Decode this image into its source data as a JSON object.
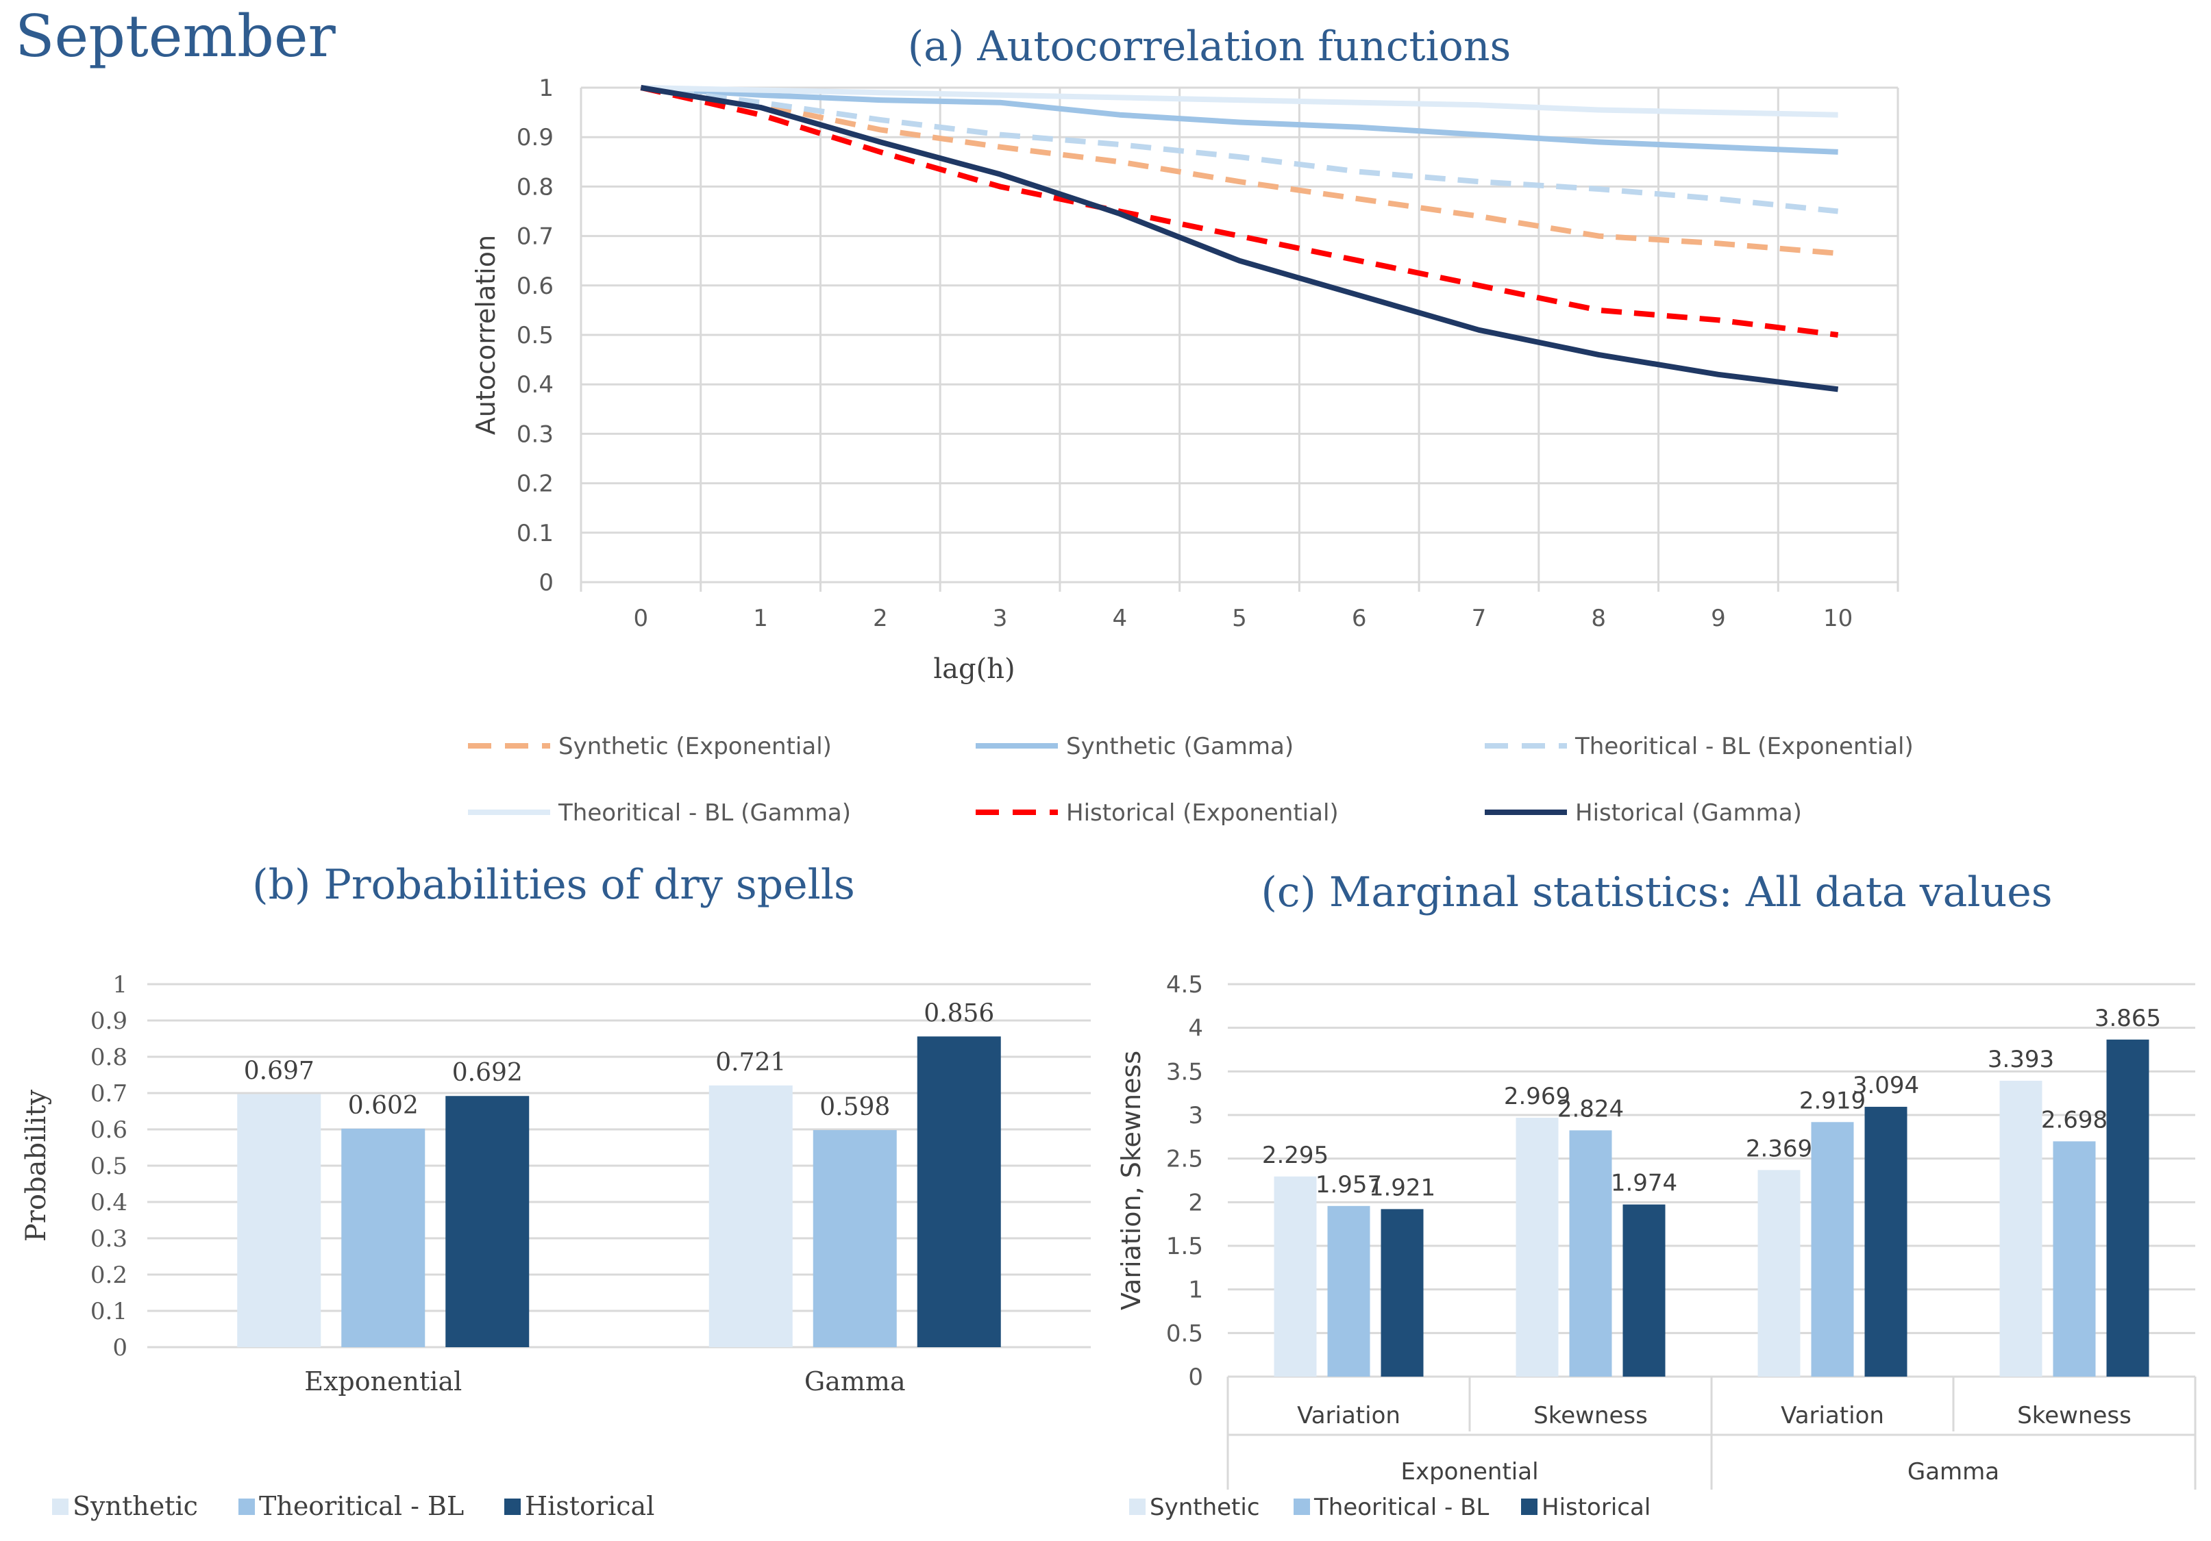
{
  "page_title": "September",
  "colors": {
    "title": "#2f5c8f",
    "grid": "#d9d9d9",
    "axis_text": "#595959",
    "label_text": "#404040",
    "synthetic": "#dce9f5",
    "theoretical": "#9dc3e6",
    "historical": "#1f4e79",
    "synth_exp_line": "#f4b183",
    "synth_gamma_line": "#9dc3e6",
    "theo_exp_line": "#bdd7ee",
    "theo_gamma_line": "#deebf7",
    "hist_exp_line": "#ff0000",
    "hist_gamma_line": "#1f3864"
  },
  "chart_data": [
    {
      "type": "line",
      "title": "(a) Autocorrelation functions",
      "xlabel": "lag(h)",
      "ylabel": "Autocorrelation",
      "x": [
        0,
        1,
        2,
        3,
        4,
        5,
        6,
        7,
        8,
        9,
        10
      ],
      "xlim": [
        0,
        10
      ],
      "ylim": [
        0,
        1
      ],
      "yticks": [
        "0",
        "0.1",
        "0.2",
        "0.3",
        "0.4",
        "0.5",
        "0.6",
        "0.7",
        "0.8",
        "0.9",
        "1"
      ],
      "grid": true,
      "legend_position": "bottom",
      "series": [
        {
          "name": "Synthetic (Exponential)",
          "style": "dashed",
          "color_key": "synth_exp_line",
          "values": [
            1.0,
            0.965,
            0.915,
            0.88,
            0.85,
            0.81,
            0.775,
            0.74,
            0.7,
            0.685,
            0.665
          ]
        },
        {
          "name": "Synthetic (Gamma)",
          "style": "solid",
          "color_key": "synth_gamma_line",
          "values": [
            1.0,
            0.985,
            0.975,
            0.97,
            0.945,
            0.93,
            0.92,
            0.905,
            0.89,
            0.88,
            0.87
          ]
        },
        {
          "name": "Theoritical - BL (Exponential)",
          "style": "dashed",
          "color_key": "theo_exp_line",
          "values": [
            1.0,
            0.97,
            0.935,
            0.905,
            0.885,
            0.86,
            0.83,
            0.81,
            0.795,
            0.775,
            0.75
          ]
        },
        {
          "name": "Theoritical - BL (Gamma)",
          "style": "solid",
          "color_key": "theo_gamma_line",
          "values": [
            1.0,
            0.995,
            0.99,
            0.985,
            0.98,
            0.975,
            0.97,
            0.965,
            0.955,
            0.95,
            0.945
          ]
        },
        {
          "name": "Historical (Exponential)",
          "style": "dashed",
          "color_key": "hist_exp_line",
          "values": [
            1.0,
            0.945,
            0.87,
            0.8,
            0.75,
            0.7,
            0.65,
            0.6,
            0.55,
            0.53,
            0.5
          ]
        },
        {
          "name": "Historical (Gamma)",
          "style": "solid",
          "color_key": "hist_gamma_line",
          "values": [
            1.0,
            0.96,
            0.89,
            0.825,
            0.745,
            0.65,
            0.58,
            0.51,
            0.46,
            0.42,
            0.39
          ]
        }
      ]
    },
    {
      "type": "bar",
      "title": "(b) Probabilities of dry spells",
      "xlabel": "",
      "ylabel": "Probability",
      "categories": [
        "Exponential",
        "Gamma"
      ],
      "ylim": [
        0,
        1
      ],
      "yticks": [
        "0",
        "0.1",
        "0.2",
        "0.3",
        "0.4",
        "0.5",
        "0.6",
        "0.7",
        "0.8",
        "0.9",
        "1"
      ],
      "grid": true,
      "legend_position": "bottom-left",
      "series": [
        {
          "name": "Synthetic",
          "color_key": "synthetic",
          "values": [
            0.697,
            0.721
          ],
          "labels": [
            "0.697",
            "0.721"
          ]
        },
        {
          "name": "Theoritical - BL",
          "color_key": "theoretical",
          "values": [
            0.602,
            0.598
          ],
          "labels": [
            "0.602",
            "0.598"
          ]
        },
        {
          "name": "Historical",
          "color_key": "historical",
          "values": [
            0.692,
            0.856
          ],
          "labels": [
            "0.692",
            "0.856"
          ]
        }
      ]
    },
    {
      "type": "bar",
      "title": "(c) Marginal statistics: All data values",
      "xlabel": "",
      "ylabel": "Variation, Skewness",
      "categories": [
        "Variation",
        "Skewness",
        "Variation",
        "Skewness"
      ],
      "groups": [
        "Exponential",
        "Gamma"
      ],
      "ylim": [
        0,
        4.5
      ],
      "yticks": [
        "0",
        "0.5",
        "1",
        "1.5",
        "2",
        "2.5",
        "3",
        "3.5",
        "4",
        "4.5"
      ],
      "grid": true,
      "legend_position": "bottom-left",
      "series": [
        {
          "name": "Synthetic",
          "color_key": "synthetic",
          "values": [
            2.295,
            2.969,
            2.369,
            3.393
          ],
          "labels": [
            "2.295",
            "2.969",
            "2.369",
            "3.393"
          ]
        },
        {
          "name": "Theoritical - BL",
          "color_key": "theoretical",
          "values": [
            1.957,
            2.824,
            2.919,
            2.698
          ],
          "labels": [
            "1.957",
            "2.824",
            "2.919",
            "2.698"
          ]
        },
        {
          "name": "Historical",
          "color_key": "historical",
          "values": [
            1.921,
            1.974,
            3.094,
            3.865
          ],
          "labels": [
            "1.921",
            "1.974",
            "3.094",
            "3.865"
          ]
        }
      ]
    }
  ]
}
